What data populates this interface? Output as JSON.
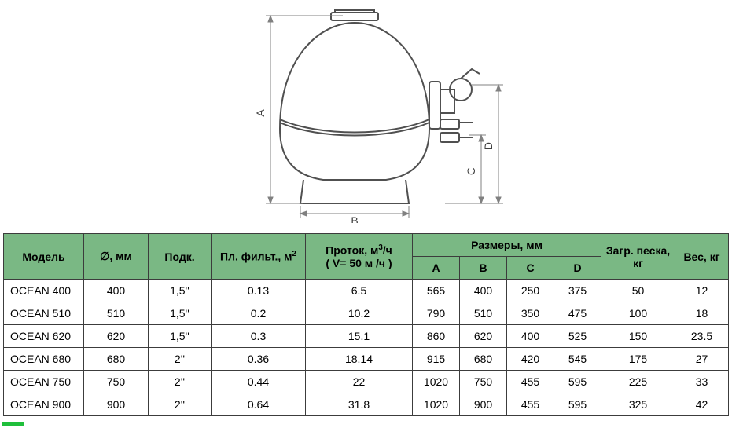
{
  "colors": {
    "header_bg": "#7ab884",
    "grid": "#3c3c3c",
    "diagram_stroke": "#505050",
    "dim_stroke": "#808080"
  },
  "diagram": {
    "labels": {
      "A": "A",
      "B": "B",
      "C": "C",
      "D": "D"
    }
  },
  "headers": {
    "model": "Модель",
    "diameter": "∅, мм",
    "connection": "Подк.",
    "filter_area_html": "Пл. фильт., м<sup>2</sup>",
    "flow_html": "Проток, м<sup>3</sup>/ч<br>( V= 50 м /ч )",
    "dimensions": "Размеры, мм",
    "A": "A",
    "B": "B",
    "C": "C",
    "D": "D",
    "sand": "Загр. песка, кг",
    "weight": "Вес, кг"
  },
  "rows": [
    {
      "model": "OCEAN 400",
      "diam": "400",
      "conn": "1,5''",
      "area": "0.13",
      "flow": "6.5",
      "A": "565",
      "B": "400",
      "C": "250",
      "D": "375",
      "sand": "50",
      "wt": "12"
    },
    {
      "model": "OCEAN 510",
      "diam": "510",
      "conn": "1,5''",
      "area": "0.2",
      "flow": "10.2",
      "A": "790",
      "B": "510",
      "C": "350",
      "D": "475",
      "sand": "100",
      "wt": "18"
    },
    {
      "model": "OCEAN 620",
      "diam": "620",
      "conn": "1,5''",
      "area": "0.3",
      "flow": "15.1",
      "A": "860",
      "B": "620",
      "C": "400",
      "D": "525",
      "sand": "150",
      "wt": "23.5"
    },
    {
      "model": "OCEAN 680",
      "diam": "680",
      "conn": "2''",
      "area": "0.36",
      "flow": "18.14",
      "A": "915",
      "B": "680",
      "C": "420",
      "D": "545",
      "sand": "175",
      "wt": "27"
    },
    {
      "model": "OCEAN 750",
      "diam": "750",
      "conn": "2''",
      "area": "0.44",
      "flow": "22",
      "A": "1020",
      "B": "750",
      "C": "455",
      "D": "595",
      "sand": "225",
      "wt": "33"
    },
    {
      "model": "OCEAN 900",
      "diam": "900",
      "conn": "2''",
      "area": "0.64",
      "flow": "31.8",
      "A": "1020",
      "B": "900",
      "C": "455",
      "D": "595",
      "sand": "325",
      "wt": "42"
    }
  ]
}
